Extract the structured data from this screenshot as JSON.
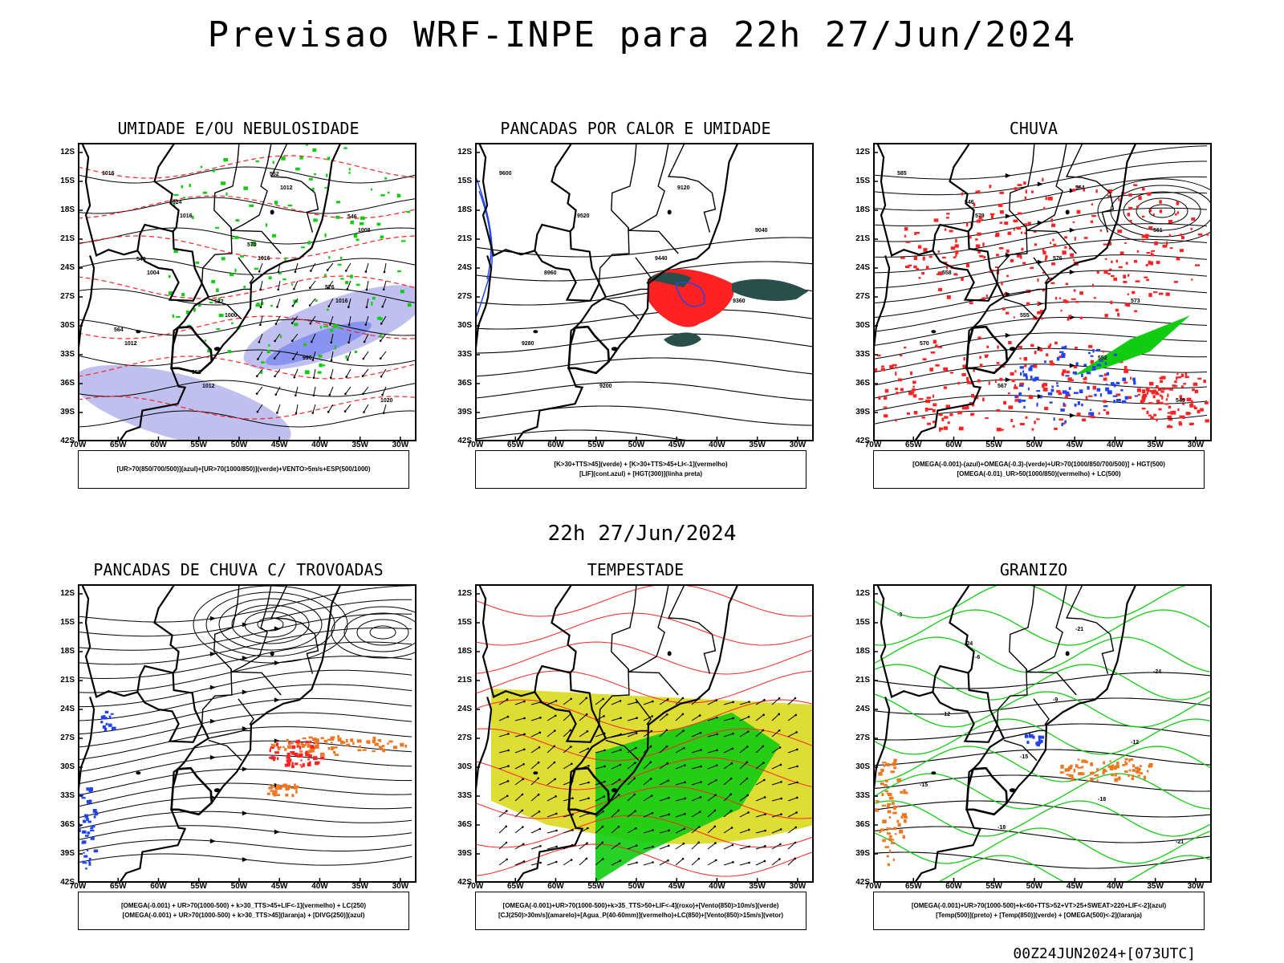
{
  "header": {
    "title": "Previsao WRF-INPE  para 22h 27/Jun/2024",
    "mid_time": "22h 27/Jun/2024",
    "footer_code": "00Z24JUN2024+[073UTC]"
  },
  "axes": {
    "lat_labels": [
      "12S",
      "15S",
      "18S",
      "21S",
      "24S",
      "27S",
      "30S",
      "33S",
      "36S",
      "39S",
      "42S"
    ],
    "lon_labels": [
      "70W",
      "65W",
      "60W",
      "55W",
      "50W",
      "45W",
      "40W",
      "35W",
      "30W"
    ]
  },
  "colors": {
    "blue": "#2244ee",
    "green": "#11cc11",
    "red": "#ff2222",
    "orange": "#ee7722",
    "yellow": "#dddd33",
    "lavender": "#b8b8ee",
    "teal": "#2a4f4a"
  },
  "panels": [
    {
      "title": "UMIDADE E/OU NEBULOSIDADE",
      "legend": [
        "[UR>70(850/700/500)](azul)+[UR>70(1000/850)](verde)+VENTO>5m/s+ESP(500/1000)"
      ],
      "contour_labels": [
        "1016",
        "1016",
        "1016",
        "1016",
        "1012",
        "1012",
        "1012",
        "1008",
        "1004",
        "1000",
        "996",
        "1020",
        "1024",
        "570",
        "576",
        "564",
        "558",
        "552",
        "546",
        "540",
        "582"
      ]
    },
    {
      "title": "PANCADAS POR CALOR E UMIDADE",
      "legend": [
        "[K>30+TTS>45](verde) + [K>30+TTS>45+LI<-1](vermelho)",
        "[LIF](cont.azul) + [HGT(300)](linha preta)"
      ],
      "contour_labels": [
        "9600",
        "9520",
        "9440",
        "9360",
        "9280",
        "9200",
        "9120",
        "9040",
        "8960"
      ]
    },
    {
      "title": "CHUVA",
      "legend": [
        "[OMEGA(-0.001)-(azul)+OMEGA(-0.3)-(verde)+UR>70(1000/850/700/500)] + HGT(500)",
        "[OMEGA(-0.01)_UR>50(1000/850)(vermelho) + LC(500)"
      ],
      "contour_labels": [
        "585",
        "579",
        "576",
        "573",
        "570",
        "567",
        "564",
        "561",
        "558",
        "555",
        "552",
        "549",
        "546"
      ]
    },
    {
      "title": "PANCADAS DE CHUVA C/ TROVOADAS",
      "legend": [
        "[OMEGA(-0.001) + UR>70(1000-500) + k>30_TTS>45+LIF<-1](vermelho) + LC(250)",
        "[OMEGA(-0.001) + UR>70(1000-500) + k>30_TTS>45](laranja) + [DIVG(250)](azul)"
      ],
      "contour_labels": []
    },
    {
      "title": "TEMPESTADE",
      "legend": [
        "[OMEGA(-0.001)+UR>70(1000-500)+k>35_TTS>50+LIF<-4](roxo)+[Vento(850)>10m/s](verde)",
        "[CJ(250)>30m/s](amarelo)+[Agua_P(40-60mm)](vermelho)+LC(850)+[Vento(850)>15m/s](vetor)"
      ],
      "contour_labels": []
    },
    {
      "title": "GRANIZO",
      "legend": [
        "[OMEGA(-0.001)+UR>70(1000-500)+k<60+TTS>52+VT>25+SWEAT>220+LIF<-2](azul)",
        "[Temp(500)](preto) + [Temp(850)](verde) + [OMEGA(500)<-2](laranja)"
      ],
      "contour_labels": [
        "-3",
        "-6",
        "-9",
        "-12",
        "-15",
        "-18",
        "-21",
        "-24",
        "-12",
        "-15",
        "-18",
        "-21",
        "-24"
      ]
    }
  ]
}
